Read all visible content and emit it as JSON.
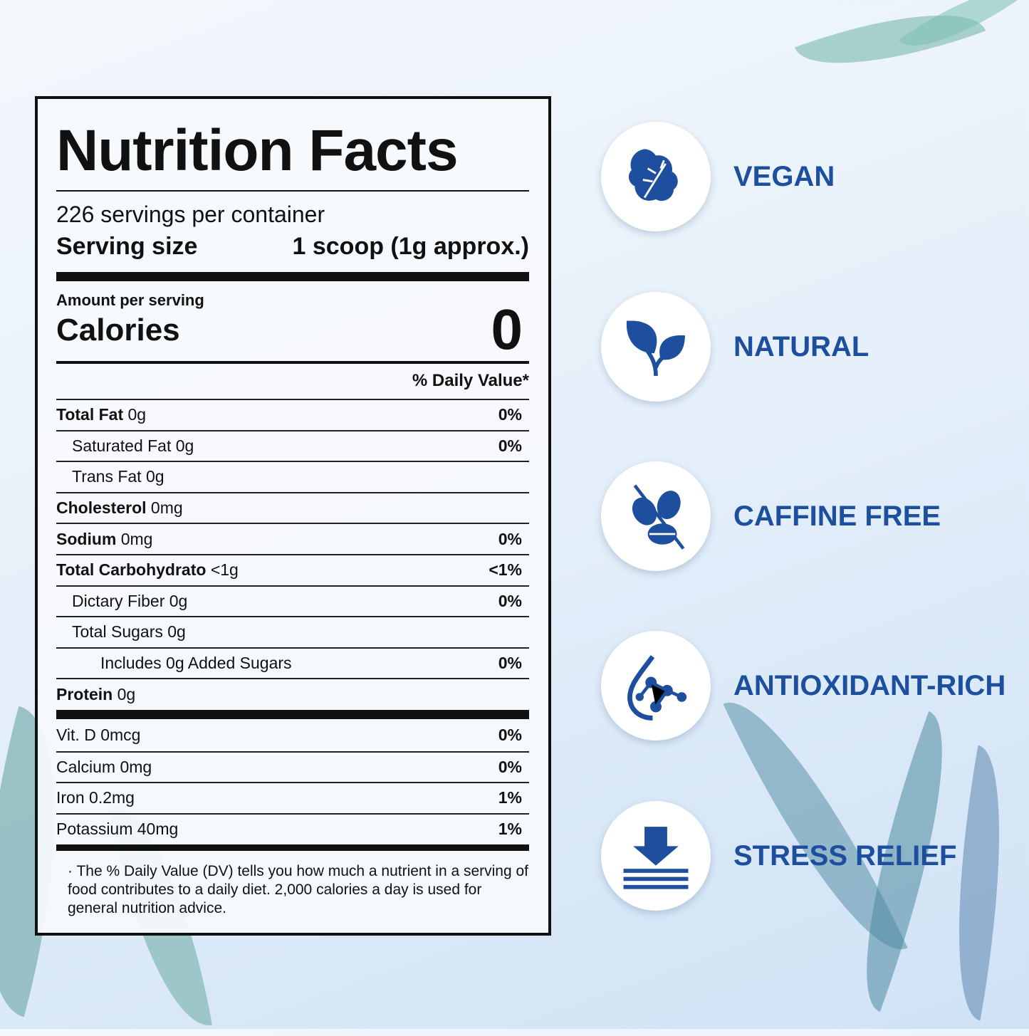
{
  "nutrition_label": {
    "title": "Nutrition Facts",
    "servings_per_container": "226 servings per container",
    "serving_size_label": "Serving size",
    "serving_size_value": "1 scoop (1g approx.)",
    "amount_per_serving": "Amount per serving",
    "calories_label": "Calories",
    "calories_value": "0",
    "daily_value_header": "% Daily Value*",
    "nutrients": [
      {
        "name": "Total Fat",
        "amount": "0g",
        "dv": "0%",
        "bold": true,
        "indent": 0
      },
      {
        "name": "Saturated Fat",
        "amount": "0g",
        "dv": "0%",
        "bold": false,
        "indent": 1
      },
      {
        "name": "Trans Fat",
        "amount": "0g",
        "dv": "",
        "bold": false,
        "indent": 1
      },
      {
        "name": "Cholesterol",
        "amount": "0mg",
        "dv": "",
        "bold": true,
        "indent": 0
      },
      {
        "name": "Sodium",
        "amount": "0mg",
        "dv": "0%",
        "bold": true,
        "indent": 0
      },
      {
        "name": "Total Carbohydrato",
        "amount": "<1g",
        "dv": "<1%",
        "bold": true,
        "indent": 0
      },
      {
        "name": "Dictary Fiber",
        "amount": "0g",
        "dv": "0%",
        "bold": false,
        "indent": 1
      },
      {
        "name": "Total Sugars",
        "amount": "0g",
        "dv": "",
        "bold": false,
        "indent": 1
      },
      {
        "name": "Includes 0g Added Sugars",
        "amount": "",
        "dv": "0%",
        "bold": false,
        "indent": 2
      },
      {
        "name": "Protein",
        "amount": "0g",
        "dv": "",
        "bold": true,
        "indent": 0
      }
    ],
    "vitamins": [
      {
        "name": "Vit. D 0mcg",
        "dv": "0%"
      },
      {
        "name": "Calcium 0mg",
        "dv": "0%"
      },
      {
        "name": "Iron 0.2mg",
        "dv": "1%"
      },
      {
        "name": "Potassium 40mg",
        "dv": "1%"
      }
    ],
    "footnote": "· The % Daily Value (DV) tells you how much a nutrient in a serving of food contributes to a daily diet. 2,000 calories a day is used for general nutrition advice."
  },
  "features": [
    {
      "label": "VEGAN",
      "icon": "kale-leaf-icon"
    },
    {
      "label": "NATURAL",
      "icon": "sprout-icon"
    },
    {
      "label": "CAFFINE FREE",
      "icon": "coffee-bean-crossed-icon"
    },
    {
      "label": "ANTIOXIDANT-RICH",
      "icon": "molecule-drop-icon"
    },
    {
      "label": "STRESS RELIEF",
      "icon": "down-arrow-layers-icon"
    }
  ],
  "colors": {
    "accent": "#1d4f9e",
    "text": "#111111"
  }
}
